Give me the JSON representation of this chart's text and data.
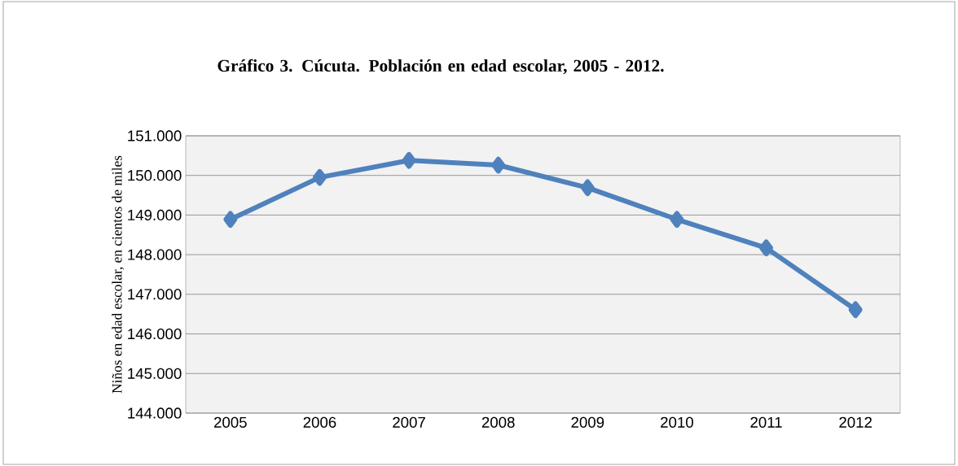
{
  "chart_data": {
    "type": "line",
    "title": "Gráfico 3. Cúcuta. Población en edad escolar, 2005 - 2012.",
    "ylabel": "Niños en edad escolar, en cientos de miles",
    "categories": [
      "2005",
      "2006",
      "2007",
      "2008",
      "2009",
      "2010",
      "2011",
      "2012"
    ],
    "series": [
      {
        "color": "#4f81bd",
        "values": [
          148890,
          149950,
          150380,
          150260,
          149690,
          148890,
          148170,
          146610
        ]
      }
    ],
    "ylim": [
      144000,
      151000
    ],
    "yticks": [
      {
        "value": 144000,
        "label": "144.000"
      },
      {
        "value": 145000,
        "label": "145.000"
      },
      {
        "value": 146000,
        "label": "146.000"
      },
      {
        "value": 147000,
        "label": "147.000"
      },
      {
        "value": 148000,
        "label": "148.000"
      },
      {
        "value": 149000,
        "label": "149.000"
      },
      {
        "value": 150000,
        "label": "150.000"
      },
      {
        "value": 151000,
        "label": "151.000"
      }
    ],
    "grid": "y",
    "marker": "diamond",
    "line_style": "solid"
  }
}
